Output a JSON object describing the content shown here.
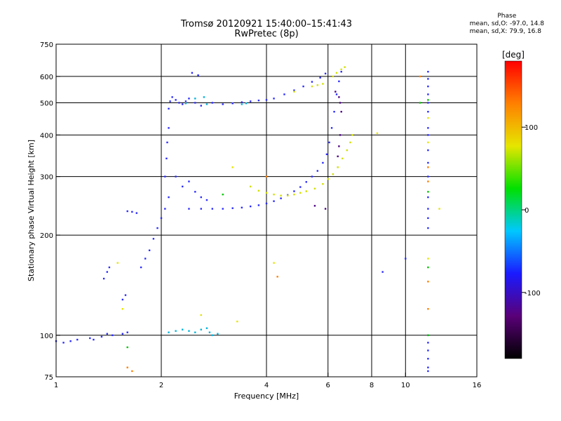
{
  "title": {
    "line1": "Tromsø 20120921 15:40:00–15:41:43",
    "line2": "RwPretec (8p)"
  },
  "phase_stats": {
    "heading": "Phase",
    "o_line": "mean, sd,O: -97.0, 14.8",
    "x_line": "mean, sd,X:  79.9, 16.8"
  },
  "colorbar": {
    "label": "[deg]",
    "ticks": [
      "100",
      "0",
      "-100"
    ],
    "tick_values": [
      100,
      0,
      -100
    ],
    "range": [
      -180,
      180
    ],
    "colors": [
      "#000000",
      "#5a0078",
      "#1a1aff",
      "#00c8ff",
      "#00e000",
      "#e6e600",
      "#ff8000",
      "#ff0000"
    ]
  },
  "chart_data": {
    "type": "scatter",
    "xlabel": "Frequency [MHz]",
    "ylabel": "Stationary phase Virtual Height [km]",
    "x_scale": "log",
    "y_scale": "log",
    "xlim": [
      1,
      16
    ],
    "ylim": [
      75,
      750
    ],
    "x_ticks": [
      1,
      2,
      4,
      6,
      8,
      10,
      16
    ],
    "x_tick_labels": [
      "1",
      "2",
      "4",
      "6",
      "8",
      "10",
      "16"
    ],
    "y_ticks": [
      75,
      100,
      200,
      300,
      400,
      500,
      600,
      750
    ],
    "y_tick_labels": [
      "75",
      "100",
      "200",
      "300",
      "400",
      "500",
      "600",
      "750"
    ],
    "x_gridlines": [
      2,
      4,
      6,
      8,
      10
    ],
    "y_gridlines": [
      100,
      200,
      300,
      400,
      500,
      600
    ],
    "series": [
      {
        "color": "#2b2bff",
        "points": [
          [
            1.0,
            96
          ],
          [
            1.05,
            95
          ],
          [
            1.1,
            96
          ],
          [
            1.15,
            97
          ],
          [
            1.25,
            98
          ],
          [
            1.35,
            99
          ],
          [
            1.45,
            100
          ],
          [
            1.55,
            101
          ],
          [
            1.6,
            102
          ],
          [
            1.28,
            97
          ],
          [
            1.4,
            101
          ]
        ]
      },
      {
        "color": "#2b2bff",
        "points": [
          [
            1.37,
            148
          ],
          [
            1.4,
            155
          ],
          [
            1.42,
            160
          ],
          [
            1.55,
            128
          ],
          [
            1.58,
            132
          ],
          [
            1.6,
            236
          ],
          [
            1.65,
            235
          ],
          [
            1.7,
            233
          ],
          [
            1.75,
            160
          ],
          [
            1.8,
            170
          ],
          [
            1.85,
            180
          ],
          [
            1.9,
            195
          ],
          [
            1.95,
            210
          ],
          [
            2.0,
            225
          ],
          [
            2.05,
            240
          ],
          [
            2.1,
            260
          ]
        ]
      },
      {
        "color": "#2b2bff",
        "points": [
          [
            2.05,
            300
          ],
          [
            2.07,
            340
          ],
          [
            2.08,
            380
          ],
          [
            2.1,
            420
          ],
          [
            2.1,
            480
          ],
          [
            2.12,
            505
          ],
          [
            2.15,
            520
          ],
          [
            2.2,
            510
          ],
          [
            2.25,
            500
          ],
          [
            2.3,
            495
          ],
          [
            2.35,
            505
          ],
          [
            2.4,
            515
          ],
          [
            2.5,
            500
          ],
          [
            2.6,
            490
          ],
          [
            2.8,
            500
          ],
          [
            3.0,
            495
          ],
          [
            3.2,
            498
          ],
          [
            3.4,
            502
          ],
          [
            3.6,
            505
          ],
          [
            3.8,
            508
          ],
          [
            4.0,
            510
          ],
          [
            4.2,
            515
          ],
          [
            4.5,
            530
          ],
          [
            4.8,
            545
          ],
          [
            5.1,
            560
          ],
          [
            5.4,
            578
          ],
          [
            5.7,
            595
          ],
          [
            5.9,
            612
          ],
          [
            2.45,
            615
          ],
          [
            2.55,
            605
          ]
        ]
      },
      {
        "color": "#2b2bff",
        "points": [
          [
            2.4,
            240
          ],
          [
            2.6,
            240
          ],
          [
            2.8,
            240
          ],
          [
            3.0,
            240
          ],
          [
            3.2,
            241
          ],
          [
            3.4,
            242
          ],
          [
            3.6,
            244
          ],
          [
            3.8,
            246
          ],
          [
            4.0,
            249
          ],
          [
            4.2,
            253
          ],
          [
            4.4,
            258
          ],
          [
            4.6,
            264
          ],
          [
            4.8,
            271
          ],
          [
            5.0,
            279
          ],
          [
            5.2,
            289
          ],
          [
            5.4,
            300
          ],
          [
            5.6,
            312
          ],
          [
            5.8,
            330
          ],
          [
            5.95,
            350
          ],
          [
            6.05,
            380
          ],
          [
            6.15,
            420
          ],
          [
            6.25,
            470
          ],
          [
            6.35,
            530
          ],
          [
            6.45,
            580
          ],
          [
            6.55,
            620
          ],
          [
            2.2,
            300
          ],
          [
            2.3,
            280
          ],
          [
            2.4,
            290
          ],
          [
            2.5,
            270
          ],
          [
            2.6,
            260
          ],
          [
            2.7,
            255
          ]
        ]
      },
      {
        "color": "#4b0082",
        "points": [
          [
            6.3,
            540
          ],
          [
            6.45,
            520
          ],
          [
            6.5,
            500
          ],
          [
            6.55,
            470
          ],
          [
            6.5,
            400
          ],
          [
            6.45,
            370
          ],
          [
            6.4,
            345
          ],
          [
            5.9,
            240
          ],
          [
            5.5,
            245
          ]
        ]
      },
      {
        "color": "#d2e000",
        "points": [
          [
            3.6,
            280
          ],
          [
            3.8,
            272
          ],
          [
            4.0,
            268
          ],
          [
            4.2,
            265
          ],
          [
            4.4,
            263
          ],
          [
            4.6,
            263
          ],
          [
            4.8,
            265
          ],
          [
            5.0,
            268
          ],
          [
            5.2,
            271
          ],
          [
            5.5,
            276
          ],
          [
            5.8,
            285
          ],
          [
            6.0,
            295
          ],
          [
            6.2,
            305
          ],
          [
            6.4,
            320
          ],
          [
            6.6,
            340
          ],
          [
            6.8,
            360
          ],
          [
            6.95,
            380
          ],
          [
            7.05,
            400
          ],
          [
            6.2,
            600
          ],
          [
            6.35,
            615
          ],
          [
            6.55,
            630
          ],
          [
            6.7,
            640
          ],
          [
            5.4,
            560
          ],
          [
            5.6,
            565
          ],
          [
            5.8,
            570
          ],
          [
            4.8,
            540
          ]
        ]
      },
      {
        "color": "#00b4dc",
        "points": [
          [
            2.1,
            102
          ],
          [
            2.2,
            103
          ],
          [
            2.3,
            104
          ],
          [
            2.4,
            103
          ],
          [
            2.5,
            102
          ],
          [
            2.6,
            104
          ],
          [
            2.7,
            105
          ],
          [
            2.75,
            102
          ],
          [
            2.8,
            100
          ],
          [
            2.9,
            101
          ],
          [
            2.65,
            520
          ],
          [
            2.5,
            515
          ],
          [
            2.35,
            498
          ],
          [
            2.7,
            495
          ],
          [
            3.4,
            495
          ],
          [
            3.5,
            498
          ]
        ]
      },
      {
        "color": "#2b2bff",
        "points": [
          [
            11.6,
            620
          ],
          [
            11.6,
            590
          ],
          [
            11.6,
            560
          ],
          [
            11.6,
            530
          ],
          [
            11.6,
            500
          ],
          [
            11.6,
            470
          ],
          [
            11.6,
            420
          ],
          [
            11.6,
            400
          ],
          [
            11.6,
            360
          ],
          [
            11.6,
            330
          ],
          [
            11.6,
            300
          ],
          [
            11.6,
            260
          ],
          [
            11.6,
            240
          ],
          [
            11.6,
            225
          ],
          [
            11.6,
            210
          ],
          [
            11.6,
            100
          ],
          [
            11.6,
            95
          ],
          [
            11.6,
            90
          ],
          [
            11.6,
            85
          ],
          [
            11.6,
            80
          ],
          [
            11.6,
            78
          ],
          [
            10.0,
            170
          ],
          [
            8.6,
            155
          ]
        ]
      },
      {
        "color": "#ff8000",
        "points": [
          [
            11.6,
            320
          ],
          [
            11.6,
            290
          ],
          [
            11.6,
            145
          ],
          [
            11.6,
            120
          ],
          [
            11.0,
            600
          ],
          [
            4.0,
            300
          ],
          [
            4.3,
            150
          ],
          [
            1.6,
            80
          ],
          [
            1.65,
            78
          ]
        ]
      },
      {
        "color": "#00c800",
        "points": [
          [
            11.6,
            510
          ],
          [
            11.6,
            270
          ],
          [
            11.6,
            160
          ],
          [
            11.6,
            100
          ],
          [
            1.6,
            92
          ],
          [
            11.0,
            500
          ],
          [
            3.0,
            265
          ]
        ]
      },
      {
        "color": "#e6e600",
        "points": [
          [
            11.6,
            450
          ],
          [
            11.6,
            380
          ],
          [
            11.6,
            170
          ],
          [
            12.5,
            240
          ],
          [
            8.3,
            405
          ],
          [
            3.2,
            320
          ],
          [
            1.55,
            120
          ],
          [
            1.5,
            165
          ],
          [
            2.6,
            115
          ],
          [
            3.3,
            110
          ],
          [
            4.2,
            165
          ]
        ]
      }
    ]
  }
}
